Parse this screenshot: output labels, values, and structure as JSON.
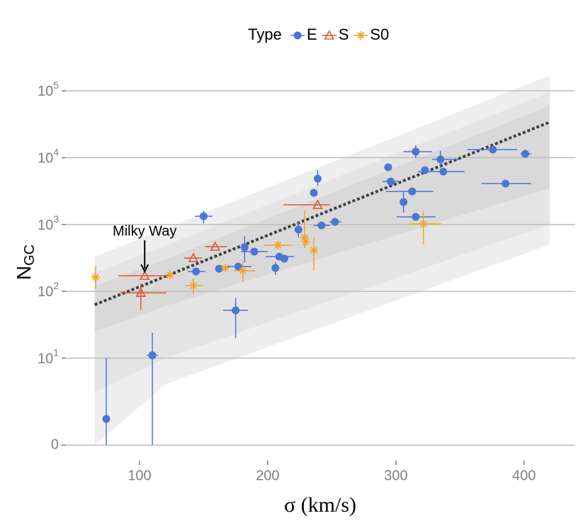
{
  "chart_data": {
    "type": "scatter",
    "xlabel": "σ  (km/s)",
    "ylabel": "N",
    "ylabel_sub": "GC",
    "legend_title": "Type",
    "legend": "top",
    "yscale": "pseudo_log",
    "grid": true,
    "xlim": [
      42.5,
      440
    ],
    "ylim": [
      -0.56,
      287000
    ],
    "xticks": [
      100,
      200,
      300,
      400
    ],
    "yticks": [
      0,
      {
        "value": 10,
        "label": "10",
        "sup": "1"
      },
      {
        "value": 100,
        "label": "10",
        "sup": "2"
      },
      {
        "value": 1000,
        "label": "10",
        "sup": "3"
      },
      {
        "value": 10000,
        "label": "10",
        "sup": "4"
      },
      {
        "value": 100000,
        "label": "10",
        "sup": "5"
      }
    ],
    "bands": [
      {
        "color": "#eeeeee",
        "x": [
          65,
          120,
          420
        ],
        "upper": [
          330,
          870,
          170000
        ],
        "lower": [
          0,
          4,
          500
        ]
      },
      {
        "color": "#e4e4e4",
        "x": [
          65,
          120,
          420
        ],
        "upper": [
          190,
          480,
          95000
        ],
        "lower": [
          3,
          10,
          1000
        ]
      },
      {
        "color": "#d9d9d9",
        "x": [
          65,
          120,
          420
        ],
        "upper": [
          120,
          300,
          60000
        ],
        "lower": [
          25,
          60,
          3500
        ]
      }
    ],
    "fit": {
      "color": "#404040",
      "x": [
        65,
        420
      ],
      "values": [
        63,
        34000
      ]
    },
    "annotation": {
      "text": "Milky Way",
      "x": 104,
      "y": 171
    },
    "series": [
      {
        "name": "E",
        "color": "#4a76d4",
        "marker": "circle",
        "x": [
          74,
          110,
          150,
          175,
          144,
          162,
          177,
          182,
          189.5,
          206,
          209,
          213,
          224,
          236,
          239,
          242,
          252.5,
          294,
          296,
          315.5,
          306,
          312.7,
          315.5,
          322.7,
          334.8,
          337,
          375.7,
          385.6,
          401
        ],
        "values": [
          1.03,
          11,
          1330,
          52,
          198,
          218,
          235,
          455,
          393,
          224,
          331,
          308,
          838,
          2980,
          4850,
          969,
          1094,
          7180,
          4400,
          12300,
          2170,
          3130,
          1300,
          6500,
          9400,
          6200,
          13200,
          4100,
          11400
        ],
        "x_low": [
          null,
          105.5,
          143.1,
          165.2,
          137.6,
          null,
          168,
          null,
          179,
          null,
          198.3,
          null,
          null,
          null,
          null,
          235.9,
          248,
          null,
          289.5,
          306,
          null,
          292.3,
          300.6,
          null,
          328.2,
          317.1,
          355.8,
          366.9,
          397.2
        ],
        "x_high": [
          null,
          114.4,
          156.9,
          184.5,
          151.4,
          null,
          187.3,
          null,
          200,
          null,
          220.4,
          null,
          null,
          null,
          null,
          248.6,
          257.5,
          null,
          303.3,
          328.2,
          null,
          329.3,
          330.9,
          null,
          350.3,
          353.6,
          394.5,
          405.5,
          405.5
        ],
        "y_low": [
          0,
          0,
          1043,
          20,
          null,
          null,
          null,
          272,
          null,
          176,
          null,
          null,
          640,
          null,
          3800,
          null,
          null,
          null,
          null,
          9860,
          1505,
          null,
          null,
          null,
          7000,
          null,
          null,
          null,
          null
        ],
        "y_high": [
          10,
          24,
          1620,
          80,
          null,
          null,
          null,
          672,
          null,
          272,
          null,
          null,
          1122,
          null,
          6500,
          null,
          null,
          null,
          null,
          15300,
          3130,
          null,
          null,
          null,
          12600,
          null,
          null,
          null,
          null
        ]
      },
      {
        "name": "S",
        "color": "#e0552f",
        "marker": "triangle",
        "x": [
          104,
          101,
          142,
          159,
          239
        ],
        "values": [
          171,
          95,
          315,
          466,
          1970
        ],
        "x_low": [
          83.4,
          85.1,
          134.8,
          151.4,
          212.2
        ],
        "x_high": [
          123.8,
          121,
          148.6,
          168,
          248.6
        ],
        "y_low": [
          null,
          53,
          null,
          null,
          null
        ],
        "y_high": [
          null,
          131,
          null,
          null,
          null
        ]
      },
      {
        "name": "S0",
        "color": "#f5a21b",
        "marker": "asterisk",
        "x": [
          65.7,
          123.8,
          142,
          166.9,
          180.7,
          208,
          228.7,
          229.8,
          236,
          321.5
        ],
        "values": [
          163,
          176,
          122,
          224,
          203,
          490,
          640,
          553,
          412,
          1020
        ],
        "x_low": [
          null,
          null,
          135.9,
          null,
          173.5,
          197.2,
          null,
          null,
          null,
          310.5
        ],
        "x_high": [
          null,
          null,
          149.7,
          null,
          190,
          219.3,
          null,
          null,
          null,
          335.4
        ],
        "y_low": [
          108,
          null,
          91,
          null,
          137,
          null,
          444,
          null,
          203,
          501
        ],
        "y_high": [
          241,
          null,
          155,
          null,
          286,
          null,
          1620,
          null,
          640,
          1580
        ]
      }
    ]
  }
}
